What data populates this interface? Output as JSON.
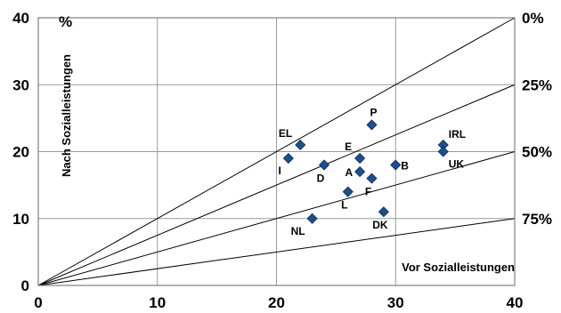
{
  "chart_data": {
    "type": "scatter",
    "xlabel": "Vor Sozialleistungen",
    "ylabel": "Nach Sozialleistungen",
    "y_unit": "%",
    "xlim": [
      0,
      40
    ],
    "ylim": [
      0,
      40
    ],
    "x_ticks": [
      "0",
      "10",
      "20",
      "30",
      "40"
    ],
    "y_ticks": [
      "0",
      "10",
      "20",
      "30",
      "40"
    ],
    "grid": true,
    "reference_lines": [
      {
        "label": "0%",
        "reduction": 0
      },
      {
        "label": "25%",
        "reduction": 0.25
      },
      {
        "label": "50%",
        "reduction": 0.5
      },
      {
        "label": "75%",
        "reduction": 0.75
      }
    ],
    "points": [
      {
        "label": "EL",
        "x": 22,
        "y": 21,
        "label_pos": "above-left"
      },
      {
        "label": "I",
        "x": 21,
        "y": 19,
        "label_pos": "below-left"
      },
      {
        "label": "D",
        "x": 24,
        "y": 18,
        "label_pos": "below"
      },
      {
        "label": "P",
        "x": 28,
        "y": 24,
        "label_pos": "above"
      },
      {
        "label": "E",
        "x": 27,
        "y": 19,
        "label_pos": "above-left"
      },
      {
        "label": "A",
        "x": 27,
        "y": 17,
        "label_pos": "left"
      },
      {
        "label": "F",
        "x": 28,
        "y": 16,
        "label_pos": "below"
      },
      {
        "label": "B",
        "x": 30,
        "y": 18,
        "label_pos": "right"
      },
      {
        "label": "L",
        "x": 26,
        "y": 14,
        "label_pos": "below"
      },
      {
        "label": "DK",
        "x": 29,
        "y": 11,
        "label_pos": "below"
      },
      {
        "label": "NL",
        "x": 23,
        "y": 10,
        "label_pos": "below-left"
      },
      {
        "label": "IRL",
        "x": 34,
        "y": 21,
        "label_pos": "above-right"
      },
      {
        "label": "UK",
        "x": 34,
        "y": 20,
        "label_pos": "below-right"
      }
    ]
  }
}
